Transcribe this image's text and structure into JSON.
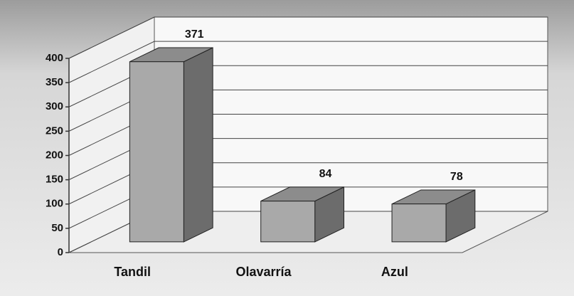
{
  "chart_data": {
    "type": "bar3d",
    "categories": [
      "Tandil",
      "Olavarría",
      "Azul"
    ],
    "values": [
      371,
      84,
      78
    ],
    "colors": {
      "front": "#a9a9a9",
      "side": "#6c6c6c",
      "top": "#8c8c8c"
    },
    "ylim": [
      0,
      400
    ],
    "yticks": [
      0,
      50,
      100,
      150,
      200,
      250,
      300,
      350,
      400
    ],
    "grid": true
  }
}
